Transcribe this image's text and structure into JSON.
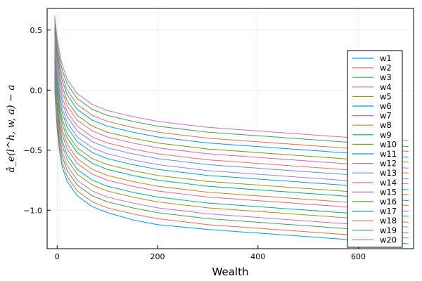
{
  "chart_data": {
    "type": "line",
    "xlabel": "Wealth",
    "ylabel": "â_e(l^h, w, a) − a",
    "xlim": [
      -20,
      710
    ],
    "ylim": [
      -1.32,
      0.68
    ],
    "xticks": [
      0,
      200,
      400,
      600
    ],
    "yticks": [
      0.5,
      0.0,
      -0.5,
      -1.0
    ],
    "xtick_labels": [
      "0",
      "200",
      "400",
      "600"
    ],
    "ytick_labels": [
      "0.5",
      "0.0",
      "−0.5",
      "−1.0"
    ],
    "grid": true,
    "legend_position": "right",
    "x": [
      -5,
      0,
      5,
      10,
      20,
      40,
      70,
      100,
      150,
      200,
      300,
      400,
      500,
      600,
      700
    ],
    "series": [
      {
        "name": "w1",
        "color": "#009AFA",
        "values": [
          0.0,
          -0.33,
          -0.52,
          -0.64,
          -0.76,
          -0.88,
          -0.97,
          -1.02,
          -1.08,
          -1.12,
          -1.16,
          -1.19,
          -1.22,
          -1.25,
          -1.28
        ]
      },
      {
        "name": "w2",
        "color": "#E36F47",
        "values": [
          0.03,
          -0.29,
          -0.48,
          -0.6,
          -0.72,
          -0.84,
          -0.93,
          -0.98,
          -1.03,
          -1.07,
          -1.12,
          -1.15,
          -1.18,
          -1.21,
          -1.23
        ]
      },
      {
        "name": "w3",
        "color": "#3EA44E",
        "values": [
          0.07,
          -0.25,
          -0.43,
          -0.55,
          -0.67,
          -0.79,
          -0.88,
          -0.93,
          -0.98,
          -1.02,
          -1.07,
          -1.1,
          -1.13,
          -1.16,
          -1.19
        ]
      },
      {
        "name": "w4",
        "color": "#C371D2",
        "values": [
          0.1,
          -0.21,
          -0.39,
          -0.51,
          -0.63,
          -0.75,
          -0.84,
          -0.89,
          -0.94,
          -0.98,
          -1.03,
          -1.06,
          -1.09,
          -1.12,
          -1.14
        ]
      },
      {
        "name": "w5",
        "color": "#AC8E18",
        "values": [
          0.13,
          -0.17,
          -0.34,
          -0.46,
          -0.58,
          -0.7,
          -0.79,
          -0.84,
          -0.89,
          -0.93,
          -0.98,
          -1.01,
          -1.04,
          -1.07,
          -1.1
        ]
      },
      {
        "name": "w6",
        "color": "#00A9AD",
        "values": [
          0.16,
          -0.13,
          -0.3,
          -0.42,
          -0.54,
          -0.66,
          -0.75,
          -0.8,
          -0.85,
          -0.89,
          -0.94,
          -0.97,
          -1.0,
          -1.03,
          -1.05
        ]
      },
      {
        "name": "w7",
        "color": "#ED5E93",
        "values": [
          0.2,
          -0.09,
          -0.26,
          -0.37,
          -0.49,
          -0.61,
          -0.7,
          -0.75,
          -0.8,
          -0.84,
          -0.89,
          -0.92,
          -0.95,
          -0.98,
          -1.01
        ]
      },
      {
        "name": "w8",
        "color": "#C68225",
        "values": [
          0.23,
          -0.05,
          -0.21,
          -0.33,
          -0.45,
          -0.57,
          -0.66,
          -0.71,
          -0.76,
          -0.8,
          -0.85,
          -0.88,
          -0.91,
          -0.94,
          -0.96
        ]
      },
      {
        "name": "w9",
        "color": "#00A98D",
        "values": [
          0.26,
          -0.01,
          -0.17,
          -0.28,
          -0.4,
          -0.52,
          -0.61,
          -0.66,
          -0.71,
          -0.75,
          -0.8,
          -0.83,
          -0.86,
          -0.89,
          -0.92
        ]
      },
      {
        "name": "w10",
        "color": "#8E971E",
        "values": [
          0.29,
          0.03,
          -0.13,
          -0.24,
          -0.36,
          -0.48,
          -0.57,
          -0.62,
          -0.67,
          -0.71,
          -0.76,
          -0.79,
          -0.82,
          -0.85,
          -0.87
        ]
      },
      {
        "name": "w11",
        "color": "#00A8CB",
        "values": [
          0.33,
          0.07,
          -0.08,
          -0.19,
          -0.31,
          -0.43,
          -0.52,
          -0.57,
          -0.62,
          -0.66,
          -0.71,
          -0.74,
          -0.77,
          -0.8,
          -0.83
        ]
      },
      {
        "name": "w12",
        "color": "#9B7FE9",
        "values": [
          0.36,
          0.11,
          -0.04,
          -0.15,
          -0.27,
          -0.39,
          -0.48,
          -0.53,
          -0.58,
          -0.62,
          -0.67,
          -0.7,
          -0.73,
          -0.76,
          -0.78
        ]
      },
      {
        "name": "w13",
        "color": "#618DF6",
        "values": [
          0.39,
          0.15,
          0.0,
          -0.1,
          -0.22,
          -0.34,
          -0.43,
          -0.48,
          -0.53,
          -0.57,
          -0.62,
          -0.65,
          -0.68,
          -0.71,
          -0.74
        ]
      },
      {
        "name": "w14",
        "color": "#F16C6B",
        "values": [
          0.42,
          0.19,
          0.05,
          -0.06,
          -0.18,
          -0.3,
          -0.39,
          -0.44,
          -0.49,
          -0.53,
          -0.58,
          -0.61,
          -0.64,
          -0.67,
          -0.69
        ]
      },
      {
        "name": "w15",
        "color": "#DD64B5",
        "values": [
          0.46,
          0.23,
          0.09,
          -0.01,
          -0.13,
          -0.25,
          -0.34,
          -0.39,
          -0.44,
          -0.48,
          -0.53,
          -0.56,
          -0.59,
          -0.62,
          -0.65
        ]
      },
      {
        "name": "w16",
        "color": "#6B9E0F",
        "values": [
          0.49,
          0.27,
          0.13,
          0.03,
          -0.09,
          -0.21,
          -0.3,
          -0.35,
          -0.4,
          -0.44,
          -0.49,
          -0.52,
          -0.55,
          -0.58,
          -0.6
        ]
      },
      {
        "name": "w17",
        "color": "#009AFA",
        "values": [
          0.52,
          0.31,
          0.18,
          0.08,
          -0.04,
          -0.16,
          -0.25,
          -0.3,
          -0.35,
          -0.39,
          -0.44,
          -0.47,
          -0.5,
          -0.53,
          -0.56
        ]
      },
      {
        "name": "w18",
        "color": "#E36F47",
        "values": [
          0.55,
          0.35,
          0.22,
          0.12,
          0.0,
          -0.12,
          -0.21,
          -0.26,
          -0.31,
          -0.35,
          -0.4,
          -0.43,
          -0.46,
          -0.49,
          -0.51
        ]
      },
      {
        "name": "w19",
        "color": "#3EA44E",
        "values": [
          0.59,
          0.39,
          0.26,
          0.17,
          0.05,
          -0.07,
          -0.16,
          -0.21,
          -0.26,
          -0.3,
          -0.35,
          -0.38,
          -0.41,
          -0.44,
          -0.47
        ]
      },
      {
        "name": "w20",
        "color": "#C371D2",
        "values": [
          0.62,
          0.43,
          0.31,
          0.21,
          0.09,
          -0.03,
          -0.12,
          -0.17,
          -0.22,
          -0.26,
          -0.31,
          -0.34,
          -0.37,
          -0.4,
          -0.42
        ]
      }
    ]
  }
}
